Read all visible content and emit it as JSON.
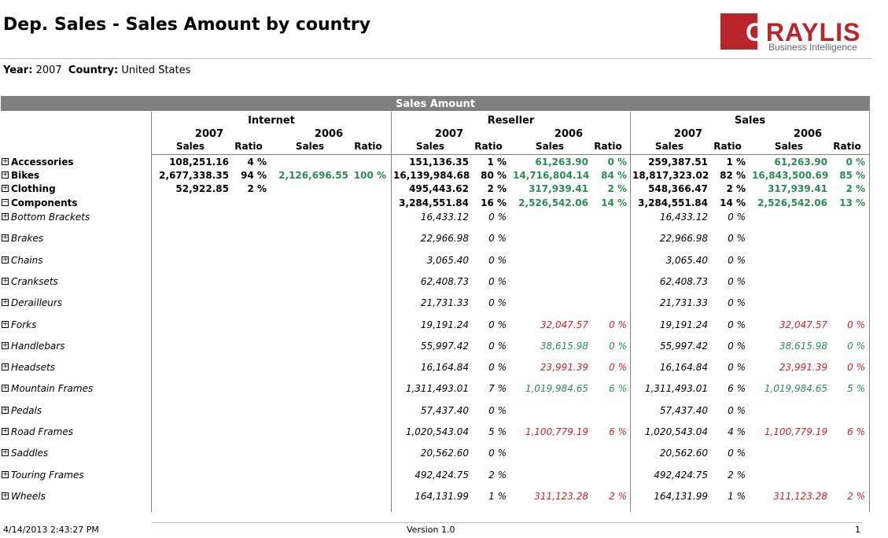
{
  "title": "Dep. Sales - Sales Amount by country",
  "logo": {
    "word_first": "O",
    "word_rest": "RAYLIS",
    "sub": "Business Intelligence"
  },
  "params": {
    "year_label": "Year:",
    "year_value": "2007",
    "country_label": "Country:",
    "country_value": "United States"
  },
  "band_title": "Sales Amount",
  "groups": [
    "Internet",
    "Reseller",
    "Sales"
  ],
  "years": [
    "2007",
    "2006"
  ],
  "sub_headers": {
    "sales": "Sales",
    "ratio": "Ratio"
  },
  "rows": [
    {
      "label": "Accessories",
      "level": 0,
      "expander": "+",
      "cells": [
        "108,251.16",
        "4 %",
        "",
        "",
        "151,136.35",
        "1 %",
        "61,263.90",
        "0 %",
        "259,387.51",
        "1 %",
        "61,263.90",
        "0 %"
      ]
    },
    {
      "label": "Bikes",
      "level": 0,
      "expander": "+",
      "cells": [
        "2,677,338.35",
        "94 %",
        "2,126,696.55",
        "100 %",
        "16,139,984.68",
        "80 %",
        "14,716,804.14",
        "84 %",
        "18,817,323.02",
        "82 %",
        "16,843,500.69",
        "85 %"
      ]
    },
    {
      "label": "Clothing",
      "level": 0,
      "expander": "+",
      "cells": [
        "52,922.85",
        "2 %",
        "",
        "",
        "495,443.62",
        "2 %",
        "317,939.41",
        "2 %",
        "548,366.47",
        "2 %",
        "317,939.41",
        "2 %"
      ]
    },
    {
      "label": "Components",
      "level": 0,
      "expander": "−",
      "cells": [
        "",
        "",
        "",
        "",
        "3,284,551.84",
        "16 %",
        "2,526,542.06",
        "14 %",
        "3,284,551.84",
        "14 %",
        "2,526,542.06",
        "13 %"
      ]
    },
    {
      "label": "Bottom Brackets",
      "level": 1,
      "expander": "+",
      "cells": [
        "",
        "",
        "",
        "",
        "16,433.12",
        "0 %",
        "",
        "",
        "16,433.12",
        "0 %",
        "",
        ""
      ]
    },
    {
      "label": "Brakes",
      "level": 1,
      "expander": "+",
      "cells": [
        "",
        "",
        "",
        "",
        "22,966.98",
        "0 %",
        "",
        "",
        "22,966.98",
        "0 %",
        "",
        ""
      ]
    },
    {
      "label": "Chains",
      "level": 1,
      "expander": "+",
      "cells": [
        "",
        "",
        "",
        "",
        "3,065.40",
        "0 %",
        "",
        "",
        "3,065.40",
        "0 %",
        "",
        ""
      ]
    },
    {
      "label": "Cranksets",
      "level": 1,
      "expander": "+",
      "cells": [
        "",
        "",
        "",
        "",
        "62,408.73",
        "0 %",
        "",
        "",
        "62,408.73",
        "0 %",
        "",
        ""
      ]
    },
    {
      "label": "Derailleurs",
      "level": 1,
      "expander": "+",
      "cells": [
        "",
        "",
        "",
        "",
        "21,731.33",
        "0 %",
        "",
        "",
        "21,731.33",
        "0 %",
        "",
        ""
      ]
    },
    {
      "label": "Forks",
      "level": 1,
      "expander": "+",
      "cells": [
        "",
        "",
        "",
        "",
        "19,191.24",
        "0 %",
        "32,047.57",
        "0 %",
        "19,191.24",
        "0 %",
        "32,047.57",
        "0 %"
      ],
      "trend": "red"
    },
    {
      "label": "Handlebars",
      "level": 1,
      "expander": "+",
      "cells": [
        "",
        "",
        "",
        "",
        "55,997.42",
        "0 %",
        "38,615.98",
        "0 %",
        "55,997.42",
        "0 %",
        "38,615.98",
        "0 %"
      ],
      "trend": "green"
    },
    {
      "label": "Headsets",
      "level": 1,
      "expander": "+",
      "cells": [
        "",
        "",
        "",
        "",
        "16,164.84",
        "0 %",
        "23,991.39",
        "0 %",
        "16,164.84",
        "0 %",
        "23,991.39",
        "0 %"
      ],
      "trend": "red"
    },
    {
      "label": "Mountain Frames",
      "level": 1,
      "expander": "+",
      "cells": [
        "",
        "",
        "",
        "",
        "1,311,493.01",
        "7 %",
        "1,019,984.65",
        "6 %",
        "1,311,493.01",
        "6 %",
        "1,019,984.65",
        "5 %"
      ],
      "trend": "green"
    },
    {
      "label": "Pedals",
      "level": 1,
      "expander": "+",
      "cells": [
        "",
        "",
        "",
        "",
        "57,437.40",
        "0 %",
        "",
        "",
        "57,437.40",
        "0 %",
        "",
        ""
      ]
    },
    {
      "label": "Road Frames",
      "level": 1,
      "expander": "+",
      "cells": [
        "",
        "",
        "",
        "",
        "1,020,543.04",
        "5 %",
        "1,100,779.19",
        "6 %",
        "1,020,543.04",
        "4 %",
        "1,100,779.19",
        "6 %"
      ],
      "trend": "red"
    },
    {
      "label": "Saddles",
      "level": 1,
      "expander": "+",
      "cells": [
        "",
        "",
        "",
        "",
        "20,562.60",
        "0 %",
        "",
        "",
        "20,562.60",
        "0 %",
        "",
        ""
      ]
    },
    {
      "label": "Touring Frames",
      "level": 1,
      "expander": "+",
      "cells": [
        "",
        "",
        "",
        "",
        "492,424.75",
        "2 %",
        "",
        "",
        "492,424.75",
        "2 %",
        "",
        ""
      ]
    },
    {
      "label": "Wheels",
      "level": 1,
      "expander": "+",
      "cells": [
        "",
        "",
        "",
        "",
        "164,131.99",
        "1 %",
        "311,123.28",
        "2 %",
        "164,131.99",
        "1 %",
        "311,123.28",
        "2 %"
      ],
      "trend": "red"
    }
  ],
  "footer": {
    "timestamp": "4/14/2013 2:43:27 PM",
    "version": "Version 1.0",
    "page": "1"
  },
  "colors": {
    "band": "#808080",
    "positive": "#2e8b57",
    "negative": "#d2222d",
    "brand": "#b8262c"
  }
}
